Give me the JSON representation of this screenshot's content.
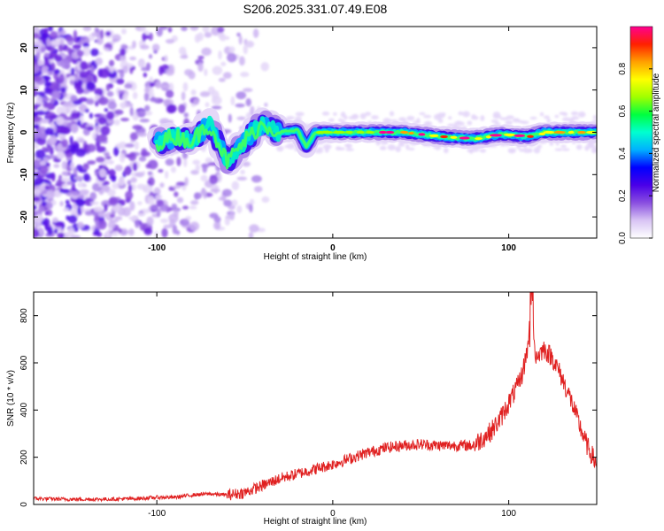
{
  "page": {
    "title": "S206.2025.331.07.49.E08"
  },
  "chart_data": [
    {
      "type": "heatmap",
      "title": "S206.2025.331.07.49.E08",
      "xlabel": "Height of straight line (km)",
      "ylabel": "Frequency (Hz)",
      "xlim": [
        -170,
        150
      ],
      "ylim": [
        -25,
        25
      ],
      "x_ticks": [
        "-100",
        "0",
        "100"
      ],
      "y_ticks": [
        "-20",
        "-10",
        "0",
        "10",
        "20"
      ],
      "colorbar": {
        "label": "Normalized spectral amplitude",
        "range": [
          0,
          1
        ],
        "ticks": [
          "0.0",
          "0.2",
          "0.4",
          "0.6",
          "0.8"
        ],
        "colors": [
          "#ffffff",
          "#d8c4f4",
          "#8a4fe0",
          "#4a00e8",
          "#0000ff",
          "#00b0ff",
          "#00ffd0",
          "#00ff40",
          "#a0ff00",
          "#ffff00",
          "#ffa000",
          "#ff2000",
          "#ff0090"
        ]
      },
      "ridge": [
        {
          "x": -100,
          "f": -2.5
        },
        {
          "x": -90,
          "f": -1
        },
        {
          "x": -80,
          "f": -2
        },
        {
          "x": -70,
          "f": 2
        },
        {
          "x": -60,
          "f": -7
        },
        {
          "x": -50,
          "f": -2
        },
        {
          "x": -40,
          "f": 2
        },
        {
          "x": -30,
          "f": 0
        },
        {
          "x": -20,
          "f": 0.5
        },
        {
          "x": -15,
          "f": -3.5
        },
        {
          "x": -10,
          "f": 0
        },
        {
          "x": 0,
          "f": 0
        },
        {
          "x": 20,
          "f": 0
        },
        {
          "x": 40,
          "f": 0
        },
        {
          "x": 60,
          "f": -1
        },
        {
          "x": 80,
          "f": -1.5
        },
        {
          "x": 95,
          "f": -0.5
        },
        {
          "x": 110,
          "f": -1
        },
        {
          "x": 120,
          "f": 0
        },
        {
          "x": 150,
          "f": 0
        }
      ]
    },
    {
      "type": "line",
      "xlabel": "Height of straight line (km)",
      "ylabel": "SNR (10 * v/v)",
      "xlim": [
        -170,
        150
      ],
      "ylim": [
        0,
        900
      ],
      "x_ticks": [
        "-100",
        "0",
        "100"
      ],
      "y_ticks": [
        "0",
        "200",
        "400",
        "600",
        "800"
      ],
      "series": [
        {
          "name": "SNR",
          "color": "#e02020",
          "x": [
            -170,
            -150,
            -130,
            -110,
            -100,
            -90,
            -80,
            -70,
            -60,
            -50,
            -40,
            -30,
            -20,
            -10,
            0,
            10,
            20,
            30,
            40,
            50,
            60,
            70,
            80,
            90,
            95,
            100,
            105,
            108,
            110,
            112,
            113,
            115,
            120,
            125,
            130,
            135,
            140,
            145,
            150
          ],
          "values": [
            25,
            22,
            22,
            25,
            30,
            30,
            40,
            45,
            40,
            50,
            80,
            110,
            130,
            150,
            170,
            195,
            220,
            240,
            250,
            255,
            250,
            250,
            250,
            310,
            360,
            430,
            500,
            560,
            640,
            700,
            900,
            620,
            660,
            620,
            540,
            450,
            340,
            240,
            170
          ]
        }
      ]
    }
  ]
}
